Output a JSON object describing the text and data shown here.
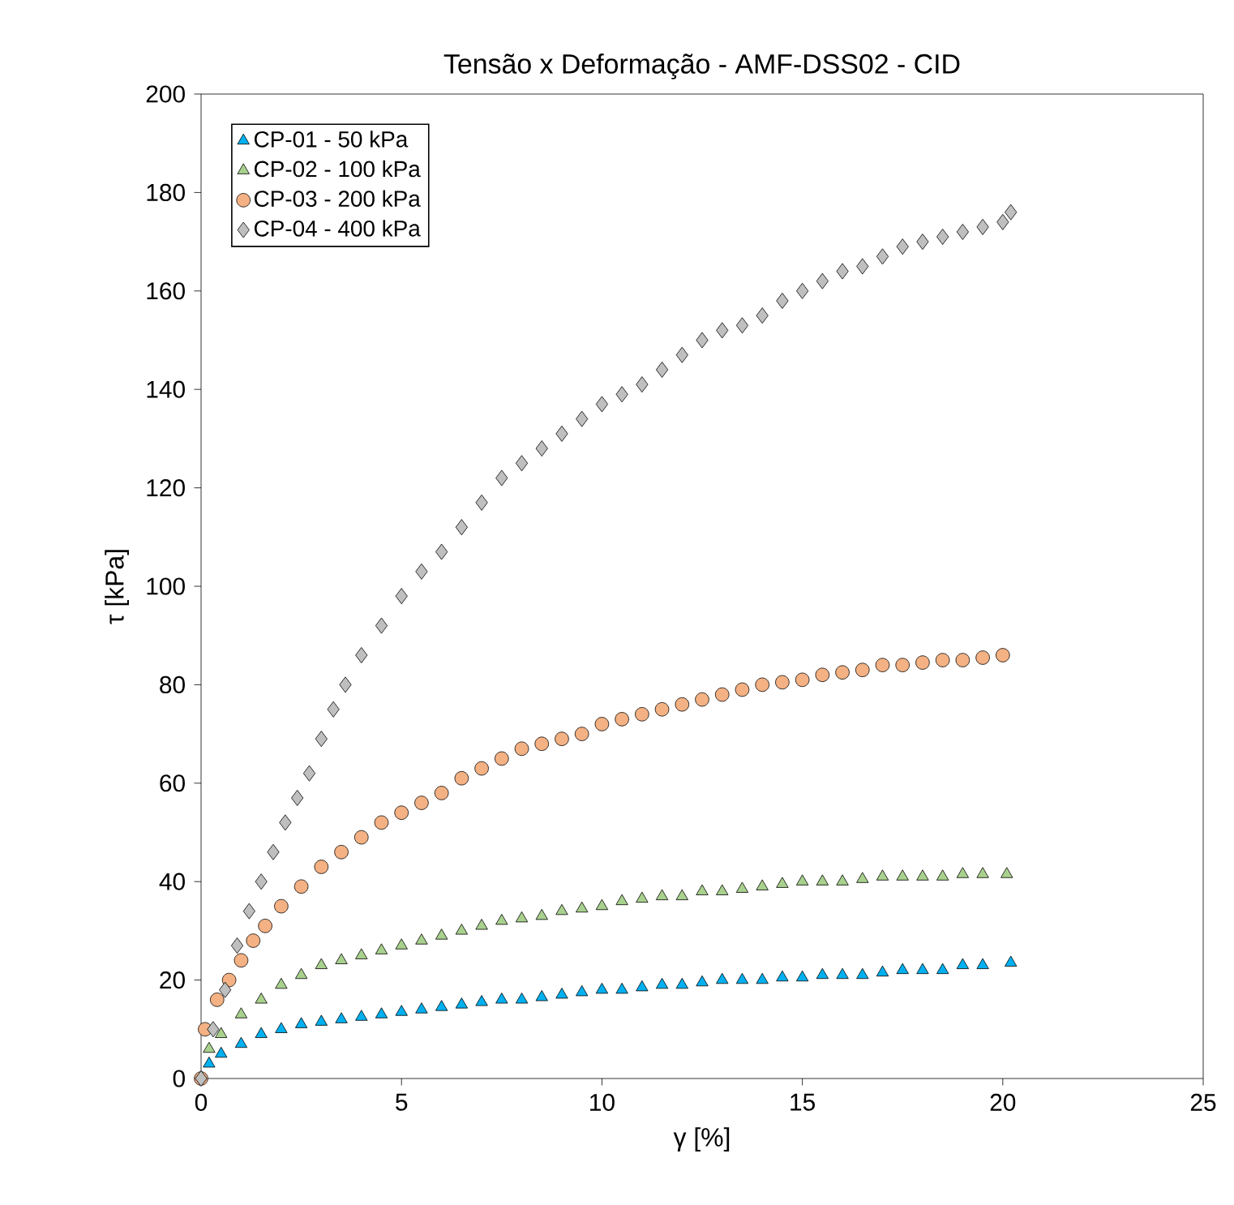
{
  "chart_data": {
    "type": "scatter",
    "title": "Tensão x Deformação - AMF-DSS02 - CID",
    "xlabel": "γ [%]",
    "ylabel": "τ [kPa]",
    "xlim": [
      0,
      25
    ],
    "ylim": [
      0,
      200
    ],
    "xticks": [
      0,
      5,
      10,
      15,
      20,
      25
    ],
    "yticks": [
      0,
      20,
      40,
      60,
      80,
      100,
      120,
      140,
      160,
      180,
      200
    ],
    "grid": false,
    "legend": "top left",
    "series": [
      {
        "name": "CP-01 - 50 kPa",
        "color": "#00b0f0",
        "marker": "triangle",
        "x": [
          0.2,
          0.5,
          1,
          1.5,
          2,
          2.5,
          3,
          3.5,
          4,
          4.5,
          5,
          5.5,
          6,
          6.5,
          7,
          7.5,
          8,
          8.5,
          9,
          9.5,
          10,
          10.5,
          11,
          11.5,
          12,
          12.5,
          13,
          13.5,
          14,
          14.5,
          15,
          15.5,
          16,
          16.5,
          17,
          17.5,
          18,
          18.5,
          19,
          19.5,
          20.2
        ],
        "values": [
          3,
          5,
          7,
          9,
          10,
          11,
          11.5,
          12,
          12.5,
          13,
          13.5,
          14,
          14.5,
          15,
          15.5,
          16,
          16,
          16.5,
          17,
          17.5,
          18,
          18,
          18.5,
          19,
          19,
          19.5,
          20,
          20,
          20,
          20.5,
          20.5,
          21,
          21,
          21,
          21.5,
          22,
          22,
          22,
          23,
          23,
          23.5
        ]
      },
      {
        "name": "CP-02 - 100 kPa",
        "color": "#a9d18e",
        "marker": "triangle",
        "x": [
          0.2,
          0.5,
          1,
          1.5,
          2,
          2.5,
          3,
          3.5,
          4,
          4.5,
          5,
          5.5,
          6,
          6.5,
          7,
          7.5,
          8,
          8.5,
          9,
          9.5,
          10,
          10.5,
          11,
          11.5,
          12,
          12.5,
          13,
          13.5,
          14,
          14.5,
          15,
          15.5,
          16,
          16.5,
          17,
          17.5,
          18,
          18.5,
          19,
          19.5,
          20.1
        ],
        "values": [
          6,
          9,
          13,
          16,
          19,
          21,
          23,
          24,
          25,
          26,
          27,
          28,
          29,
          30,
          31,
          32,
          32.5,
          33,
          34,
          34.5,
          35,
          36,
          36.5,
          37,
          37,
          38,
          38,
          38.5,
          39,
          39.5,
          40,
          40,
          40,
          40.5,
          41,
          41,
          41,
          41,
          41.5,
          41.5,
          41.5
        ]
      },
      {
        "name": "CP-03 - 200 kPa",
        "color": "#f4b183",
        "marker": "circle",
        "x": [
          0,
          0.1,
          0.4,
          0.7,
          1,
          1.3,
          1.6,
          2,
          2.5,
          3,
          3.5,
          4,
          4.5,
          5,
          5.5,
          6,
          6.5,
          7,
          7.5,
          8,
          8.5,
          9,
          9.5,
          10,
          10.5,
          11,
          11.5,
          12,
          12.5,
          13,
          13.5,
          14,
          14.5,
          15,
          15.5,
          16,
          16.5,
          17,
          17.5,
          18,
          18.5,
          19,
          19.5,
          20
        ],
        "values": [
          0,
          10,
          16,
          20,
          24,
          28,
          31,
          35,
          39,
          43,
          46,
          49,
          52,
          54,
          56,
          58,
          61,
          63,
          65,
          67,
          68,
          69,
          70,
          72,
          73,
          74,
          75,
          76,
          77,
          78,
          79,
          80,
          80.5,
          81,
          82,
          82.5,
          83,
          84,
          84,
          84.5,
          85,
          85,
          85.5,
          86
        ]
      },
      {
        "name": "CP-04 - 400 kPa",
        "color": "#bfbfbf",
        "marker": "diamond",
        "x": [
          0,
          0.3,
          0.6,
          0.9,
          1.2,
          1.5,
          1.8,
          2.1,
          2.4,
          2.7,
          3,
          3.3,
          3.6,
          4,
          4.5,
          5,
          5.5,
          6,
          6.5,
          7,
          7.5,
          8,
          8.5,
          9,
          9.5,
          10,
          10.5,
          11,
          11.5,
          12,
          12.5,
          13,
          13.5,
          14,
          14.5,
          15,
          15.5,
          16,
          16.5,
          17,
          17.5,
          18,
          18.5,
          19,
          19.5,
          20,
          20.2
        ],
        "values": [
          0,
          10,
          18,
          27,
          34,
          40,
          46,
          52,
          57,
          62,
          69,
          75,
          80,
          86,
          92,
          98,
          103,
          107,
          112,
          117,
          122,
          125,
          128,
          131,
          134,
          137,
          139,
          141,
          144,
          147,
          150,
          152,
          153,
          155,
          158,
          160,
          162,
          164,
          165,
          167,
          169,
          170,
          171,
          172,
          173,
          174,
          176
        ]
      }
    ]
  }
}
